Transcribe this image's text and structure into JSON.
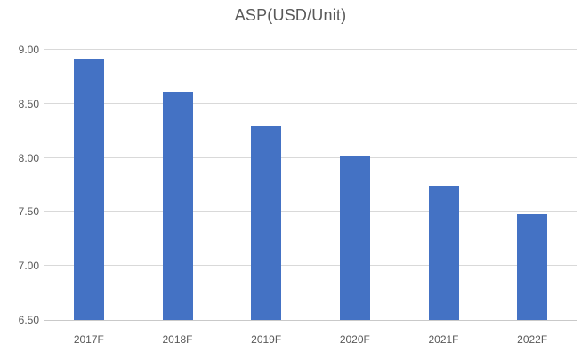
{
  "chart_data": {
    "type": "bar",
    "title": "ASP(USD/Unit)",
    "categories": [
      "2017F",
      "2018F",
      "2019F",
      "2020F",
      "2021F",
      "2022F"
    ],
    "values": [
      8.92,
      8.61,
      8.29,
      8.02,
      7.74,
      7.48
    ],
    "xlabel": "",
    "ylabel": "",
    "ylim": [
      6.5,
      9.0
    ],
    "ytick_step": 0.5,
    "y_tick_labels": [
      "6.50",
      "7.00",
      "7.50",
      "8.00",
      "8.50",
      "9.00"
    ],
    "grid": true,
    "legend": "none",
    "colors": {
      "bar": "#4472C4",
      "gridline": "#D9D9D9",
      "axis_line": "#C9C9C9",
      "text": "#595959",
      "background": "#FFFFFF"
    }
  }
}
